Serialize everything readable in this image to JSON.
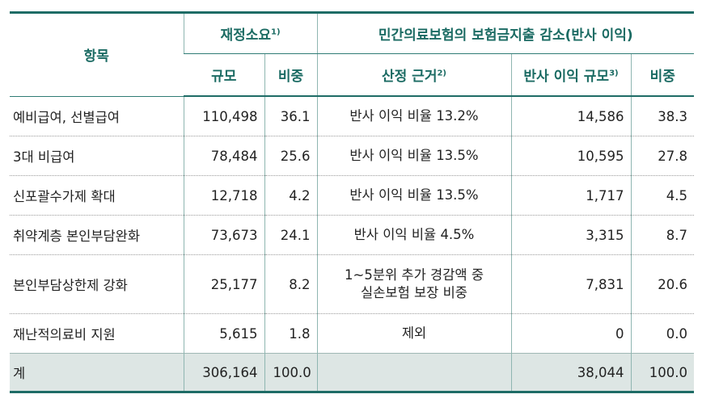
{
  "header": {
    "item": "항목",
    "fiscal": "재정소요",
    "fiscal_sup": "1)",
    "private": "민간의료보험의 보험금지출 감소(반사 이익)",
    "scale": "규모",
    "share": "비중",
    "basis": "산정 근거",
    "basis_sup": "2)",
    "benefit_scale": "반사 이익 규모",
    "benefit_scale_sup": "3)",
    "benefit_share": "비중"
  },
  "rows": [
    {
      "item": "예비급여, 선별급여",
      "scale": "110,498",
      "share": "36.1",
      "basis": [
        "반사 이익 비율 13.2%"
      ],
      "benefit": "14,586",
      "benefit_share": "38.3"
    },
    {
      "item": "3대 비급여",
      "scale": "78,484",
      "share": "25.6",
      "basis": [
        "반사 이익 비율 13.5%"
      ],
      "benefit": "10,595",
      "benefit_share": "27.8"
    },
    {
      "item": "신포괄수가제 확대",
      "scale": "12,718",
      "share": "4.2",
      "basis": [
        "반사 이익 비율 13.5%"
      ],
      "benefit": "1,717",
      "benefit_share": "4.5"
    },
    {
      "item": "취약계층 본인부담완화",
      "scale": "73,673",
      "share": "24.1",
      "basis": [
        "반사 이익 비율 4.5%"
      ],
      "benefit": "3,315",
      "benefit_share": "8.7"
    },
    {
      "item": "본인부담상한제 강화",
      "scale": "25,177",
      "share": "8.2",
      "basis": [
        "1~5분위 추가 경감액 중",
        "실손보험 보장 비중"
      ],
      "benefit": "7,831",
      "benefit_share": "20.6"
    },
    {
      "item": "재난적의료비 지원",
      "scale": "5,615",
      "share": "1.8",
      "basis": [
        "제외"
      ],
      "benefit": "0",
      "benefit_share": "0.0"
    }
  ],
  "total": {
    "item": "계",
    "scale": "306,164",
    "share": "100.0",
    "basis": "",
    "benefit": "38,044",
    "benefit_share": "100.0"
  }
}
